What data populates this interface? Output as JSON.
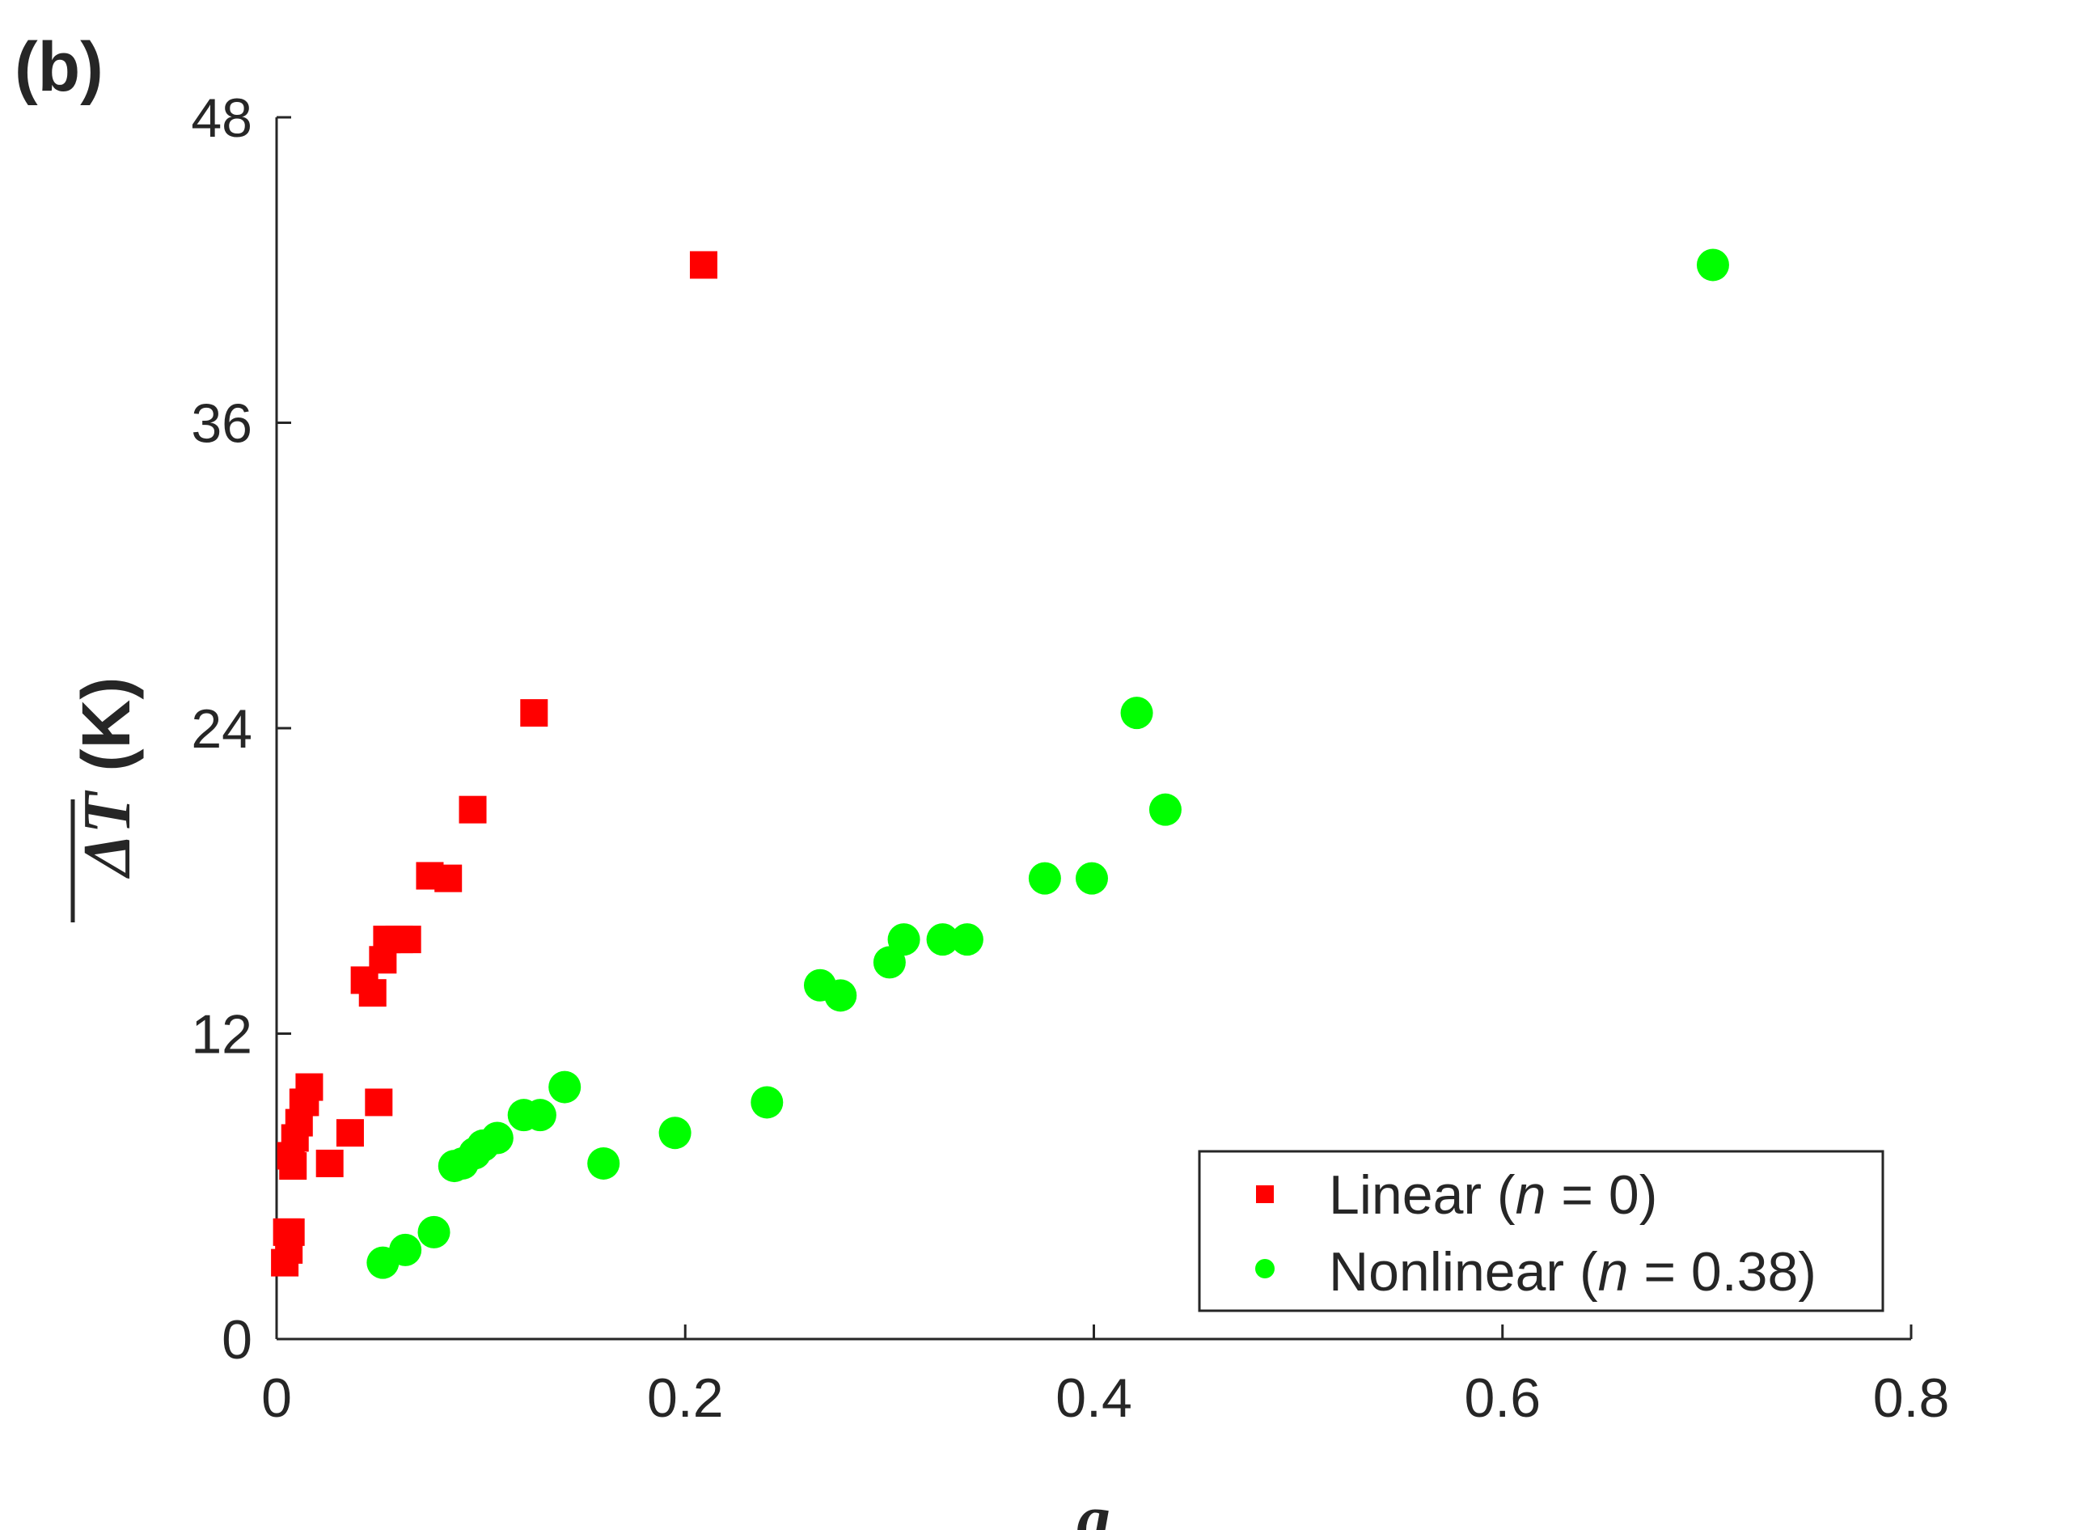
{
  "chart_data": {
    "type": "scatter",
    "panel_label": "(b)",
    "xlabel": "g",
    "ylabel_symbol": "ΔT",
    "ylabel_unit": "(K)",
    "xlim": [
      0,
      0.8
    ],
    "ylim": [
      0,
      48
    ],
    "xticks": [
      0,
      0.2,
      0.4,
      0.6,
      0.8
    ],
    "xtick_labels": [
      "0",
      "0.2",
      "0.4",
      "0.6",
      "0.8"
    ],
    "yticks": [
      0,
      12,
      24,
      36,
      48
    ],
    "ytick_labels": [
      "0",
      "12",
      "24",
      "36",
      "48"
    ],
    "grid": false,
    "legend_position": "bottom-right",
    "series": [
      {
        "name": "Linear (n = 0)",
        "legend_prefix": "Linear (",
        "legend_var": "n",
        "legend_suffix": " = 0)",
        "marker": "square",
        "color": "#ff0000",
        "x": [
          0.004,
          0.006,
          0.005,
          0.007,
          0.008,
          0.007,
          0.009,
          0.011,
          0.013,
          0.014,
          0.016,
          0.026,
          0.036,
          0.05,
          0.043,
          0.047,
          0.052,
          0.054,
          0.06,
          0.064,
          0.075,
          0.084,
          0.096,
          0.126,
          0.209
        ],
        "y": [
          3.0,
          3.5,
          4.2,
          4.2,
          6.8,
          7.2,
          7.9,
          8.5,
          9.3,
          9.3,
          9.9,
          6.9,
          8.1,
          9.3,
          14.1,
          13.6,
          14.9,
          15.7,
          15.7,
          15.7,
          18.2,
          18.1,
          20.8,
          24.6,
          42.2
        ]
      },
      {
        "name": "Nonlinear (n = 0.38)",
        "legend_prefix": "Nonlinear (",
        "legend_var": "n",
        "legend_suffix": " = 0.38)",
        "marker": "circle",
        "color": "#00ff00",
        "x": [
          0.052,
          0.063,
          0.077,
          0.087,
          0.091,
          0.097,
          0.101,
          0.108,
          0.121,
          0.129,
          0.141,
          0.16,
          0.195,
          0.24,
          0.266,
          0.276,
          0.3,
          0.307,
          0.326,
          0.338,
          0.376,
          0.399,
          0.421,
          0.435,
          0.703
        ],
        "y": [
          3.0,
          3.5,
          4.2,
          6.8,
          6.9,
          7.3,
          7.6,
          7.9,
          8.8,
          8.8,
          9.9,
          6.9,
          8.1,
          9.3,
          13.9,
          13.5,
          14.8,
          15.7,
          15.7,
          15.7,
          18.1,
          18.1,
          24.6,
          20.8,
          42.2
        ]
      }
    ]
  }
}
